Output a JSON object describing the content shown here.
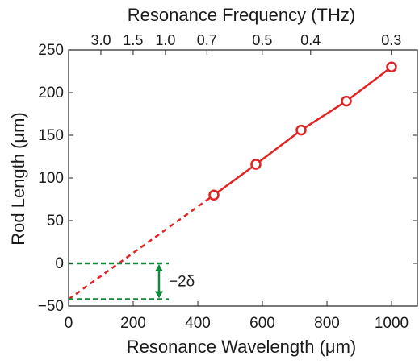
{
  "chart_data": {
    "type": "line",
    "top_axis": {
      "title": "Resonance Frequency (THz)",
      "ticks": [
        {
          "label": "3.0",
          "frequency_thz": 3.0
        },
        {
          "label": "1.5",
          "frequency_thz": 1.5
        },
        {
          "label": "1.0",
          "frequency_thz": 1.0
        },
        {
          "label": "0.7",
          "frequency_thz": 0.7
        },
        {
          "label": "0.5",
          "frequency_thz": 0.5
        },
        {
          "label": "0.4",
          "frequency_thz": 0.4
        },
        {
          "label": "0.3",
          "frequency_thz": 0.3
        }
      ]
    },
    "x_axis": {
      "title": "Resonance Wavelength (μm)",
      "lim": [
        0,
        1080
      ],
      "ticks": [
        0,
        200,
        400,
        600,
        800,
        1000
      ]
    },
    "y_axis": {
      "title": "Rod Length (μm)",
      "lim": [
        -50,
        250
      ],
      "ticks": [
        -50,
        0,
        50,
        100,
        150,
        200,
        250
      ]
    },
    "series": [
      {
        "style": "solid with circle markers",
        "color": "#e32222",
        "points": [
          {
            "x": 450,
            "y": 80
          },
          {
            "x": 580,
            "y": 116
          },
          {
            "x": 720,
            "y": 156
          },
          {
            "x": 860,
            "y": 190
          },
          {
            "x": 1000,
            "y": 230
          }
        ]
      },
      {
        "style": "dashed extrapolation",
        "color": "#e32222",
        "points": [
          {
            "x": 0,
            "y": -42
          },
          {
            "x": 450,
            "y": 80
          }
        ]
      }
    ],
    "annotation": {
      "label": "−2δ",
      "color": "#118a3c",
      "lines_y": [
        0,
        -42
      ],
      "x_range": [
        0,
        310
      ],
      "arrow_x": 280
    },
    "grid": false
  }
}
